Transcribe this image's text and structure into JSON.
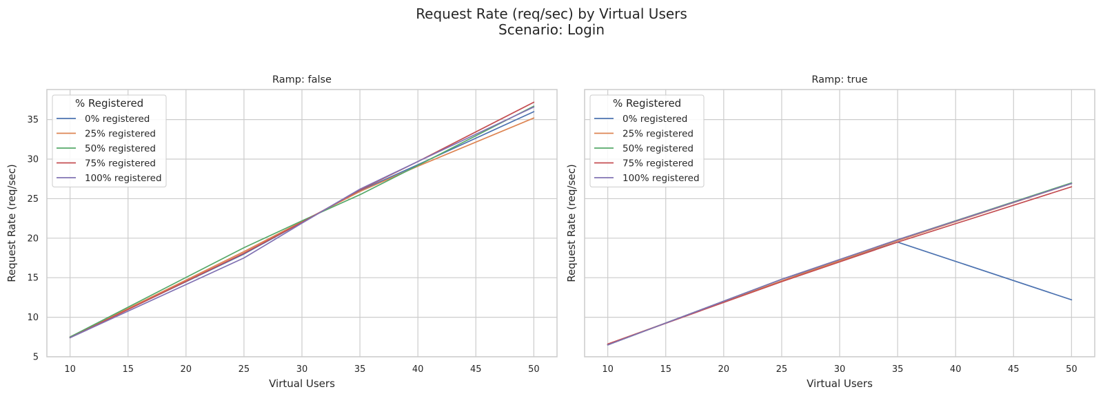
{
  "title_line1": "Request Rate (req/sec) by Virtual Users",
  "title_line2": "Scenario: Login",
  "chart_data": [
    {
      "type": "line",
      "title": "Ramp: false",
      "xlabel": "Virtual Users",
      "ylabel": "Request Rate (req/sec)",
      "xlim": [
        8,
        52
      ],
      "ylim": [
        5,
        38.8
      ],
      "xticks": [
        10,
        15,
        20,
        25,
        30,
        35,
        40,
        45,
        50
      ],
      "yticks": [
        5,
        10,
        15,
        20,
        25,
        30,
        35
      ],
      "grid": true,
      "legend_title": "% Registered",
      "legend_position": "top-left",
      "x": [
        10,
        25,
        30,
        35,
        40,
        50
      ],
      "series": [
        {
          "name": "0% registered",
          "color": "#4c72b0",
          "values": [
            7.5,
            18.0,
            22.0,
            26.0,
            29.3,
            36.0
          ]
        },
        {
          "name": "25% registered",
          "color": "#dd8452",
          "values": [
            7.5,
            18.3,
            22.1,
            25.9,
            29.1,
            35.2
          ]
        },
        {
          "name": "50% registered",
          "color": "#55a868",
          "values": [
            7.5,
            18.8,
            22.2,
            25.5,
            29.2,
            36.7
          ]
        },
        {
          "name": "75% registered",
          "color": "#c44e52",
          "values": [
            7.4,
            18.1,
            22.0,
            26.1,
            29.7,
            37.2
          ]
        },
        {
          "name": "100% registered",
          "color": "#8172b3",
          "values": [
            7.4,
            17.5,
            21.9,
            26.2,
            29.7,
            36.6
          ]
        }
      ]
    },
    {
      "type": "line",
      "title": "Ramp: true",
      "xlabel": "Virtual Users",
      "ylabel": "Request Rate (req/sec)",
      "xlim": [
        8,
        52
      ],
      "ylim": [
        5,
        38.8
      ],
      "xticks": [
        10,
        15,
        20,
        25,
        30,
        35,
        40,
        45,
        50
      ],
      "yticks": [
        5,
        10,
        15,
        20,
        25,
        30,
        35
      ],
      "grid": true,
      "legend_title": "% Registered",
      "legend_position": "top-left",
      "x": [
        10,
        25,
        35,
        50
      ],
      "series": [
        {
          "name": "0% registered",
          "color": "#4c72b0",
          "values": [
            6.5,
            14.8,
            19.5,
            12.2
          ]
        },
        {
          "name": "25% registered",
          "color": "#dd8452",
          "values": [
            6.6,
            14.6,
            19.7,
            26.9
          ]
        },
        {
          "name": "50% registered",
          "color": "#55a868",
          "values": [
            6.5,
            14.8,
            19.8,
            27.0
          ]
        },
        {
          "name": "75% registered",
          "color": "#c44e52",
          "values": [
            6.6,
            14.5,
            19.5,
            26.5
          ]
        },
        {
          "name": "100% registered",
          "color": "#8172b3",
          "values": [
            6.5,
            14.8,
            19.8,
            26.9
          ]
        }
      ]
    }
  ]
}
